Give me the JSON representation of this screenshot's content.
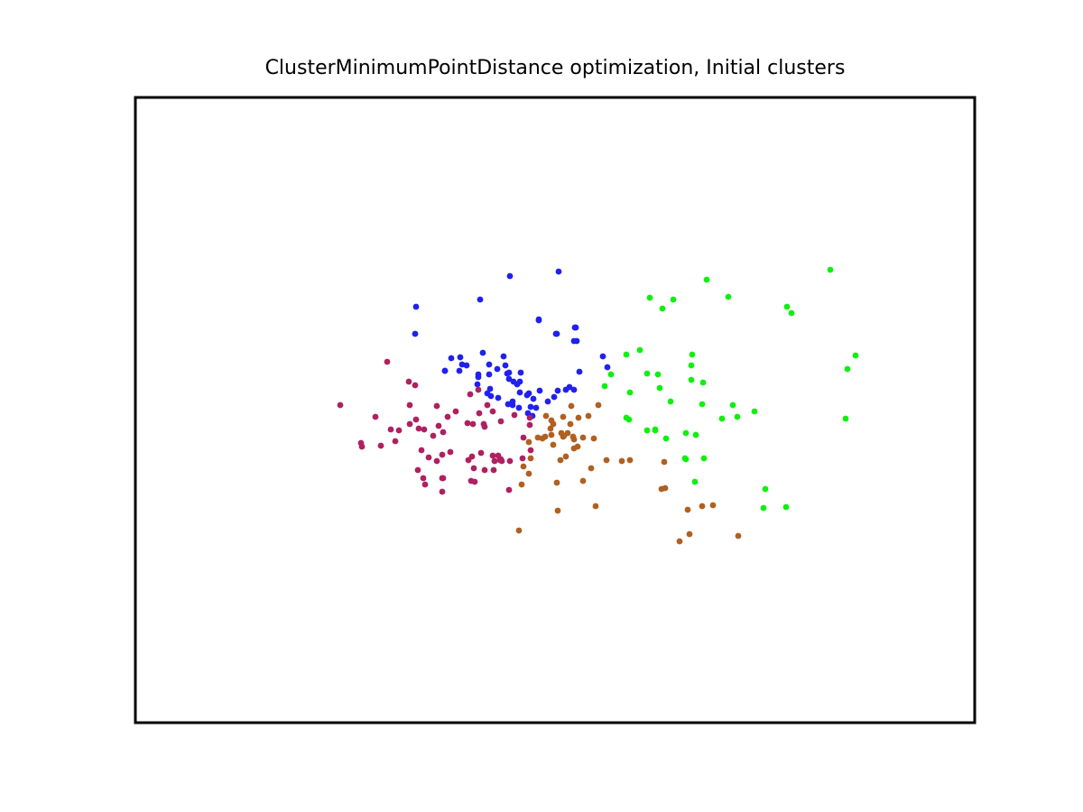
{
  "chart_data": {
    "type": "scatter",
    "title": "ClusterMinimumPointDistance optimization, Initial clusters",
    "xlabel": "",
    "ylabel": "",
    "xlim": [
      0,
      930
    ],
    "ylim": [
      0,
      693
    ],
    "axes_visible": false,
    "grid": false,
    "series": [
      {
        "color": "#2020f0",
        "points": [
          [
            311,
            461
          ],
          [
            310,
            431
          ],
          [
            382,
            469
          ],
          [
            415,
            495
          ],
          [
            469,
            500
          ],
          [
            447,
            447
          ],
          [
            466,
            431
          ],
          [
            487,
            438
          ],
          [
            486,
            423
          ],
          [
            467,
            431
          ],
          [
            489,
            423
          ],
          [
            488,
            438
          ],
          [
            518,
            406
          ],
          [
            523,
            394
          ],
          [
            492,
            389
          ],
          [
            447,
            446
          ],
          [
            359,
            390
          ],
          [
            362,
            397
          ],
          [
            367,
            396
          ],
          [
            380,
            386
          ],
          [
            392,
            386
          ],
          [
            401,
            392
          ],
          [
            408,
            406
          ],
          [
            410,
            396
          ],
          [
            414,
            388
          ],
          [
            343,
            390
          ],
          [
            360,
            405
          ],
          [
            350,
            404
          ],
          [
            343,
            390
          ],
          [
            380,
            383
          ],
          [
            385,
            410
          ],
          [
            392,
            397
          ],
          [
            379,
            375
          ],
          [
            393,
            370
          ],
          [
            414,
            381
          ],
          [
            412,
            387
          ],
          [
            419,
            378
          ],
          [
            426,
            378
          ],
          [
            427,
            388
          ],
          [
            394,
            362
          ],
          [
            390,
            365
          ],
          [
            402,
            360
          ],
          [
            418,
            356
          ],
          [
            426,
            366
          ],
          [
            418,
            352
          ],
          [
            413,
            353
          ],
          [
            434,
            363
          ],
          [
            436,
            365
          ],
          [
            444,
            349
          ],
          [
            423,
            375
          ],
          [
            425,
            349
          ],
          [
            435,
            343
          ],
          [
            438,
            350
          ],
          [
            441,
            359
          ],
          [
            440,
            340
          ],
          [
            448,
            368
          ],
          [
            457,
            356
          ],
          [
            464,
            361
          ],
          [
            468,
            368
          ],
          [
            477,
            369
          ],
          [
            481,
            372
          ],
          [
            486,
            369
          ]
        ]
      },
      {
        "color": "#10f010",
        "points": [
          [
            570,
            471
          ],
          [
            584,
            459
          ],
          [
            596,
            469
          ],
          [
            633,
            491
          ],
          [
            657,
            472
          ],
          [
            722,
            461
          ],
          [
            727,
            454
          ],
          [
            770,
            502
          ],
          [
            798,
            407
          ],
          [
            789,
            392
          ],
          [
            787,
            337
          ],
          [
            616,
            380
          ],
          [
            544,
            408
          ],
          [
            559,
            413
          ],
          [
            527,
            386
          ],
          [
            520,
            373
          ],
          [
            548,
            366
          ],
          [
            567,
            387
          ],
          [
            579,
            386
          ],
          [
            581,
            371
          ],
          [
            593,
            356
          ],
          [
            617,
            408
          ],
          [
            616,
            396
          ],
          [
            629,
            377
          ],
          [
            628,
            353
          ],
          [
            662,
            352
          ],
          [
            667,
            339
          ],
          [
            650,
            337
          ],
          [
            686,
            345
          ],
          [
            698,
            259
          ],
          [
            721,
            239
          ],
          [
            696,
            238
          ],
          [
            547,
            336
          ],
          [
            567,
            324
          ],
          [
            576,
            324
          ],
          [
            588,
            315
          ],
          [
            610,
            292
          ],
          [
            621,
            319
          ],
          [
            630,
            293
          ],
          [
            620,
            267
          ],
          [
            610,
            321
          ],
          [
            609,
            293
          ],
          [
            544,
            338
          ],
          [
            576,
            325
          ]
        ]
      },
      {
        "color": "#b06020",
        "points": [
          [
            425,
            213
          ],
          [
            468,
            235
          ],
          [
            467,
            266
          ],
          [
            510,
            240
          ],
          [
            586,
            289
          ],
          [
            612,
            236
          ],
          [
            628,
            240
          ],
          [
            640,
            241
          ],
          [
            668,
            207
          ],
          [
            614,
            209
          ],
          [
            603,
            201
          ],
          [
            583,
            259
          ],
          [
            587,
            260
          ],
          [
            505,
            282
          ],
          [
            496,
            268
          ],
          [
            471,
            291
          ],
          [
            477,
            295
          ],
          [
            522,
            291
          ],
          [
            539,
            290
          ],
          [
            548,
            291
          ],
          [
            463,
            308
          ],
          [
            508,
            315
          ],
          [
            454,
            317
          ],
          [
            436,
            311
          ],
          [
            428,
            264
          ],
          [
            436,
            276
          ],
          [
            438,
            293
          ],
          [
            430,
            284
          ],
          [
            451,
            315
          ],
          [
            460,
            326
          ],
          [
            461,
            335
          ],
          [
            455,
            340
          ],
          [
            472,
            321
          ],
          [
            479,
            321
          ],
          [
            482,
            331
          ],
          [
            485,
            317
          ],
          [
            496,
            316
          ],
          [
            502,
            340
          ],
          [
            513,
            352
          ],
          [
            483,
            351
          ],
          [
            490,
            306
          ],
          [
            486,
            304
          ],
          [
            486,
            314
          ],
          [
            475,
            318
          ],
          [
            474,
            317
          ],
          [
            491,
            338
          ],
          [
            474,
            339
          ],
          [
            463,
            331
          ],
          [
            461,
            319
          ],
          [
            446,
            316
          ]
        ]
      },
      {
        "color": "#b02060",
        "points": [
          [
            227,
            352
          ],
          [
            266,
            339
          ],
          [
            272,
            307
          ],
          [
            250,
            310
          ],
          [
            279,
            400
          ],
          [
            292,
            324
          ],
          [
            303,
            378
          ],
          [
            304,
            352
          ],
          [
            310,
            374
          ],
          [
            311,
            336
          ],
          [
            314,
            326
          ],
          [
            319,
            271
          ],
          [
            325,
            294
          ],
          [
            321,
            264
          ],
          [
            330,
            318
          ],
          [
            340,
            256
          ],
          [
            341,
            271
          ],
          [
            346,
            339
          ],
          [
            340,
            271
          ],
          [
            349,
            300
          ],
          [
            355,
            345
          ],
          [
            371,
            364
          ],
          [
            372,
            268
          ],
          [
            376,
            267
          ],
          [
            383,
            299
          ],
          [
            380,
            369
          ],
          [
            373,
            295
          ],
          [
            374,
            331
          ],
          [
            368,
            332
          ],
          [
            381,
            343
          ],
          [
            387,
            328
          ],
          [
            390,
            352
          ],
          [
            396,
            345
          ],
          [
            405,
            334
          ],
          [
            402,
            296
          ],
          [
            405,
            292
          ],
          [
            414,
            258
          ],
          [
            415,
            290
          ],
          [
            430,
            316
          ],
          [
            437,
            338
          ],
          [
            429,
            293
          ],
          [
            396,
            296
          ],
          [
            398,
            290
          ],
          [
            404,
            291
          ],
          [
            406,
            290
          ],
          [
            397,
            280
          ],
          [
            387,
            280
          ],
          [
            386,
            331
          ],
          [
            375,
            282
          ],
          [
            369,
            291
          ],
          [
            341,
            322
          ],
          [
            334,
            290
          ],
          [
            336,
            329
          ],
          [
            340,
            297
          ],
          [
            320,
            325
          ],
          [
            317,
            302
          ],
          [
            304,
            331
          ],
          [
            313,
            280
          ],
          [
            334,
            351
          ],
          [
            283,
            325
          ],
          [
            438,
            302
          ],
          [
            420,
            341
          ],
          [
            437,
            330
          ],
          [
            251,
            306
          ],
          [
            288,
            312
          ]
        ]
      }
    ]
  }
}
